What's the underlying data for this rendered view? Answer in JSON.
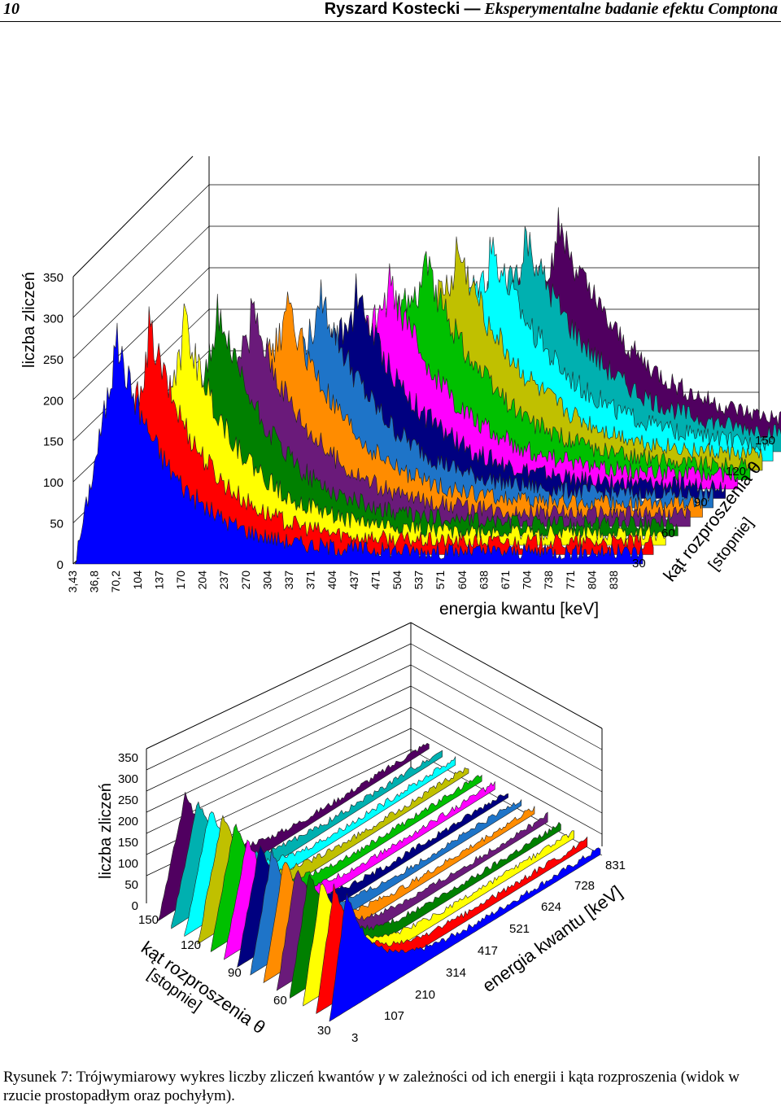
{
  "header": {
    "page_number": "10",
    "author": "Ryszard Kostecki",
    "dash": "—",
    "title": "Eksperymentalne badanie efektu Comptona"
  },
  "chart_data": [
    {
      "type": "area",
      "view": "perpendicular",
      "ylabel": "liczba zliczeń",
      "xlabel": "energia kwantu [keV]",
      "zlabel_line1": "kąt rozproszenia θ",
      "zlabel_line2": "[stopnie]",
      "y_ticks": [
        "350",
        "300",
        "250",
        "200",
        "150",
        "100",
        "50",
        "0"
      ],
      "ylim": [
        0,
        350
      ],
      "x_ticks": [
        "3,43",
        "36,8",
        "70,2",
        "104",
        "137",
        "170",
        "204",
        "237",
        "270",
        "304",
        "337",
        "371",
        "404",
        "437",
        "471",
        "504",
        "537",
        "571",
        "604",
        "638",
        "671",
        "704",
        "738",
        "771",
        "804",
        "838"
      ],
      "z_ticks": [
        "150",
        "120",
        "90",
        "60",
        "30"
      ],
      "series_colors": [
        "#0000ff",
        "#ff0000",
        "#ffff00",
        "#008000",
        "#6a1a7a",
        "#ff8c00",
        "#1e74c8",
        "#000080",
        "#ff00ff",
        "#00c000",
        "#c0c000",
        "#00ffff",
        "#00b0b0",
        "#500060"
      ]
    },
    {
      "type": "area",
      "view": "oblique",
      "ylabel": "liczba zliczeń",
      "xlabel": "energia kwantu [keV]",
      "zlabel_line1": "kąt rozproszenia θ",
      "zlabel_line2": "[stopnie]",
      "y_ticks": [
        "350",
        "300",
        "250",
        "200",
        "150",
        "100",
        "50",
        "0"
      ],
      "ylim": [
        0,
        350
      ],
      "x_ticks": [
        "3",
        "107",
        "210",
        "314",
        "417",
        "521",
        "624",
        "728",
        "831"
      ],
      "z_ticks": [
        "150",
        "120",
        "90",
        "60",
        "30"
      ]
    }
  ],
  "caption": {
    "label": "Rysunek 7:",
    "text_before": "Trójwymiarowy wykres liczby zliczeń kwantów",
    "gamma": "γ",
    "text_after": "w zależności od ich energii i kąta rozproszenia (widok w rzucie prostopadłym oraz pochyłym)."
  }
}
